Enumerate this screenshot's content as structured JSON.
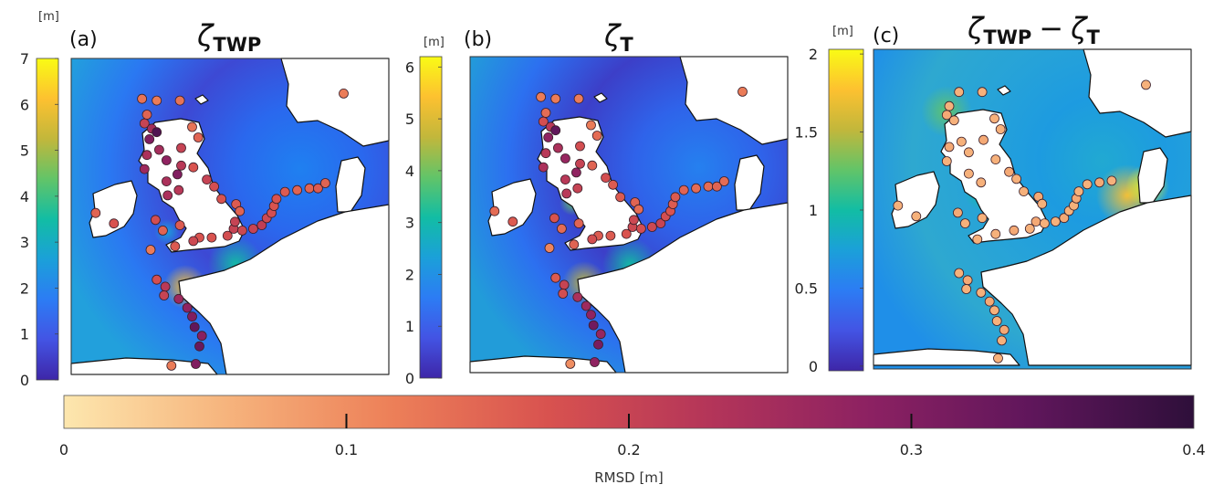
{
  "figure": {
    "panels": [
      {
        "id": "a",
        "label": "(a)",
        "title_base": "ζ",
        "title_sub": "TWP",
        "unit": "[m]",
        "cb_ticks": [
          "0",
          "1",
          "2",
          "3",
          "4",
          "5",
          "6",
          "7"
        ],
        "cb_range": [
          0,
          7
        ],
        "gauges": [
          {
            "lon": -6.2,
            "lat": 58.7,
            "rmsd": 0.13
          },
          {
            "lon": -5.0,
            "lat": 58.6,
            "rmsd": 0.12
          },
          {
            "lon": -3.1,
            "lat": 58.6,
            "rmsd": 0.13
          },
          {
            "lon": -5.8,
            "lat": 57.8,
            "rmsd": 0.15
          },
          {
            "lon": -6.0,
            "lat": 57.3,
            "rmsd": 0.2
          },
          {
            "lon": -5.4,
            "lat": 57.0,
            "rmsd": 0.25
          },
          {
            "lon": -5.0,
            "lat": 56.8,
            "rmsd": 0.36
          },
          {
            "lon": -5.6,
            "lat": 56.4,
            "rmsd": 0.3
          },
          {
            "lon": -2.1,
            "lat": 57.1,
            "rmsd": 0.13
          },
          {
            "lon": -1.6,
            "lat": 56.5,
            "rmsd": 0.15
          },
          {
            "lon": -3.0,
            "lat": 55.9,
            "rmsd": 0.2
          },
          {
            "lon": -4.8,
            "lat": 55.8,
            "rmsd": 0.25
          },
          {
            "lon": -5.8,
            "lat": 55.5,
            "rmsd": 0.24
          },
          {
            "lon": -4.2,
            "lat": 55.2,
            "rmsd": 0.28
          },
          {
            "lon": -3.0,
            "lat": 54.9,
            "rmsd": 0.22
          },
          {
            "lon": -6.0,
            "lat": 54.7,
            "rmsd": 0.26
          },
          {
            "lon": -3.3,
            "lat": 54.4,
            "rmsd": 0.3
          },
          {
            "lon": -4.2,
            "lat": 54.0,
            "rmsd": 0.24
          },
          {
            "lon": -2.0,
            "lat": 54.8,
            "rmsd": 0.17
          },
          {
            "lon": -0.9,
            "lat": 54.1,
            "rmsd": 0.2
          },
          {
            "lon": -3.2,
            "lat": 53.5,
            "rmsd": 0.22
          },
          {
            "lon": -4.1,
            "lat": 53.2,
            "rmsd": 0.24
          },
          {
            "lon": -0.3,
            "lat": 53.7,
            "rmsd": 0.18
          },
          {
            "lon": 0.3,
            "lat": 53.0,
            "rmsd": 0.17
          },
          {
            "lon": 1.5,
            "lat": 52.7,
            "rmsd": 0.16
          },
          {
            "lon": 1.8,
            "lat": 52.3,
            "rmsd": 0.15
          },
          {
            "lon": -10.0,
            "lat": 52.2,
            "rmsd": 0.15
          },
          {
            "lon": -8.5,
            "lat": 51.6,
            "rmsd": 0.17
          },
          {
            "lon": -5.1,
            "lat": 51.8,
            "rmsd": 0.18
          },
          {
            "lon": -3.1,
            "lat": 51.5,
            "rmsd": 0.16
          },
          {
            "lon": -1.5,
            "lat": 50.8,
            "rmsd": 0.17
          },
          {
            "lon": -4.5,
            "lat": 51.2,
            "rmsd": 0.15
          },
          {
            "lon": -5.5,
            "lat": 50.1,
            "rmsd": 0.12
          },
          {
            "lon": -3.5,
            "lat": 50.3,
            "rmsd": 0.16
          },
          {
            "lon": -2.0,
            "lat": 50.6,
            "rmsd": 0.19
          },
          {
            "lon": -0.5,
            "lat": 50.8,
            "rmsd": 0.17
          },
          {
            "lon": 0.8,
            "lat": 50.9,
            "rmsd": 0.18
          },
          {
            "lon": 1.3,
            "lat": 51.3,
            "rmsd": 0.2
          },
          {
            "lon": 1.4,
            "lat": 51.7,
            "rmsd": 0.2
          },
          {
            "lon": 2.0,
            "lat": 51.2,
            "rmsd": 0.19
          },
          {
            "lon": 2.9,
            "lat": 51.3,
            "rmsd": 0.2
          },
          {
            "lon": 3.6,
            "lat": 51.5,
            "rmsd": 0.21
          },
          {
            "lon": 4.0,
            "lat": 51.9,
            "rmsd": 0.19
          },
          {
            "lon": 4.4,
            "lat": 52.2,
            "rmsd": 0.18
          },
          {
            "lon": 4.6,
            "lat": 52.6,
            "rmsd": 0.17
          },
          {
            "lon": 4.8,
            "lat": 53.0,
            "rmsd": 0.17
          },
          {
            "lon": 5.5,
            "lat": 53.4,
            "rmsd": 0.16
          },
          {
            "lon": 6.5,
            "lat": 53.5,
            "rmsd": 0.15
          },
          {
            "lon": 7.5,
            "lat": 53.6,
            "rmsd": 0.15
          },
          {
            "lon": 8.2,
            "lat": 53.6,
            "rmsd": 0.16
          },
          {
            "lon": 8.8,
            "lat": 53.9,
            "rmsd": 0.15
          },
          {
            "lon": 10.3,
            "lat": 59.0,
            "rmsd": 0.12
          },
          {
            "lon": -5.0,
            "lat": 48.4,
            "rmsd": 0.18
          },
          {
            "lon": -4.3,
            "lat": 48.0,
            "rmsd": 0.22
          },
          {
            "lon": -4.4,
            "lat": 47.5,
            "rmsd": 0.2
          },
          {
            "lon": -3.2,
            "lat": 47.3,
            "rmsd": 0.26
          },
          {
            "lon": -2.5,
            "lat": 46.8,
            "rmsd": 0.28
          },
          {
            "lon": -2.1,
            "lat": 46.3,
            "rmsd": 0.3
          },
          {
            "lon": -1.9,
            "lat": 45.7,
            "rmsd": 0.34
          },
          {
            "lon": -1.3,
            "lat": 45.2,
            "rmsd": 0.29
          },
          {
            "lon": -1.5,
            "lat": 44.6,
            "rmsd": 0.33
          },
          {
            "lon": -1.8,
            "lat": 43.6,
            "rmsd": 0.3
          },
          {
            "lon": -3.8,
            "lat": 43.5,
            "rmsd": 0.12
          }
        ]
      },
      {
        "id": "b",
        "label": "(b)",
        "title_base": "ζ",
        "title_sub": "T",
        "unit": "[m]",
        "cb_ticks": [
          "0",
          "1",
          "2",
          "3",
          "4",
          "5",
          "6"
        ],
        "cb_range": [
          0,
          6.2
        ],
        "gauges": [
          {
            "lon": -6.2,
            "lat": 58.7,
            "rmsd": 0.12
          },
          {
            "lon": -5.0,
            "lat": 58.6,
            "rmsd": 0.12
          },
          {
            "lon": -3.1,
            "lat": 58.6,
            "rmsd": 0.12
          },
          {
            "lon": -5.8,
            "lat": 57.8,
            "rmsd": 0.14
          },
          {
            "lon": -6.0,
            "lat": 57.3,
            "rmsd": 0.18
          },
          {
            "lon": -5.4,
            "lat": 57.0,
            "rmsd": 0.22
          },
          {
            "lon": -5.0,
            "lat": 56.8,
            "rmsd": 0.34
          },
          {
            "lon": -5.6,
            "lat": 56.4,
            "rmsd": 0.28
          },
          {
            "lon": -2.1,
            "lat": 57.1,
            "rmsd": 0.12
          },
          {
            "lon": -1.6,
            "lat": 56.5,
            "rmsd": 0.14
          },
          {
            "lon": -3.0,
            "lat": 55.9,
            "rmsd": 0.18
          },
          {
            "lon": -4.8,
            "lat": 55.8,
            "rmsd": 0.24
          },
          {
            "lon": -5.8,
            "lat": 55.5,
            "rmsd": 0.22
          },
          {
            "lon": -4.2,
            "lat": 55.2,
            "rmsd": 0.27
          },
          {
            "lon": -3.0,
            "lat": 54.9,
            "rmsd": 0.2
          },
          {
            "lon": -6.0,
            "lat": 54.7,
            "rmsd": 0.24
          },
          {
            "lon": -3.3,
            "lat": 54.4,
            "rmsd": 0.28
          },
          {
            "lon": -4.2,
            "lat": 54.0,
            "rmsd": 0.22
          },
          {
            "lon": -2.0,
            "lat": 54.8,
            "rmsd": 0.15
          },
          {
            "lon": -0.9,
            "lat": 54.1,
            "rmsd": 0.18
          },
          {
            "lon": -3.2,
            "lat": 53.5,
            "rmsd": 0.2
          },
          {
            "lon": -4.1,
            "lat": 53.2,
            "rmsd": 0.22
          },
          {
            "lon": -0.3,
            "lat": 53.7,
            "rmsd": 0.16
          },
          {
            "lon": 0.3,
            "lat": 53.0,
            "rmsd": 0.16
          },
          {
            "lon": 1.5,
            "lat": 52.7,
            "rmsd": 0.15
          },
          {
            "lon": 1.8,
            "lat": 52.3,
            "rmsd": 0.14
          },
          {
            "lon": -10.0,
            "lat": 52.2,
            "rmsd": 0.14
          },
          {
            "lon": -8.5,
            "lat": 51.6,
            "rmsd": 0.16
          },
          {
            "lon": -5.1,
            "lat": 51.8,
            "rmsd": 0.17
          },
          {
            "lon": -3.1,
            "lat": 51.5,
            "rmsd": 0.15
          },
          {
            "lon": -1.5,
            "lat": 50.8,
            "rmsd": 0.16
          },
          {
            "lon": -4.5,
            "lat": 51.2,
            "rmsd": 0.14
          },
          {
            "lon": -5.5,
            "lat": 50.1,
            "rmsd": 0.11
          },
          {
            "lon": -3.5,
            "lat": 50.3,
            "rmsd": 0.15
          },
          {
            "lon": -2.0,
            "lat": 50.6,
            "rmsd": 0.18
          },
          {
            "lon": -0.5,
            "lat": 50.8,
            "rmsd": 0.16
          },
          {
            "lon": 0.8,
            "lat": 50.9,
            "rmsd": 0.17
          },
          {
            "lon": 1.3,
            "lat": 51.3,
            "rmsd": 0.19
          },
          {
            "lon": 1.4,
            "lat": 51.7,
            "rmsd": 0.19
          },
          {
            "lon": 2.0,
            "lat": 51.2,
            "rmsd": 0.18
          },
          {
            "lon": 2.9,
            "lat": 51.3,
            "rmsd": 0.19
          },
          {
            "lon": 3.6,
            "lat": 51.5,
            "rmsd": 0.2
          },
          {
            "lon": 4.0,
            "lat": 51.9,
            "rmsd": 0.18
          },
          {
            "lon": 4.4,
            "lat": 52.2,
            "rmsd": 0.17
          },
          {
            "lon": 4.6,
            "lat": 52.6,
            "rmsd": 0.16
          },
          {
            "lon": 4.8,
            "lat": 53.0,
            "rmsd": 0.16
          },
          {
            "lon": 5.5,
            "lat": 53.4,
            "rmsd": 0.15
          },
          {
            "lon": 6.5,
            "lat": 53.5,
            "rmsd": 0.14
          },
          {
            "lon": 7.5,
            "lat": 53.6,
            "rmsd": 0.14
          },
          {
            "lon": 8.2,
            "lat": 53.6,
            "rmsd": 0.15
          },
          {
            "lon": 8.8,
            "lat": 53.9,
            "rmsd": 0.14
          },
          {
            "lon": 10.3,
            "lat": 59.0,
            "rmsd": 0.12
          },
          {
            "lon": -5.0,
            "lat": 48.4,
            "rmsd": 0.16
          },
          {
            "lon": -4.3,
            "lat": 48.0,
            "rmsd": 0.2
          },
          {
            "lon": -4.4,
            "lat": 47.5,
            "rmsd": 0.18
          },
          {
            "lon": -3.2,
            "lat": 47.3,
            "rmsd": 0.24
          },
          {
            "lon": -2.5,
            "lat": 46.8,
            "rmsd": 0.26
          },
          {
            "lon": -2.1,
            "lat": 46.3,
            "rmsd": 0.28
          },
          {
            "lon": -1.9,
            "lat": 45.7,
            "rmsd": 0.32
          },
          {
            "lon": -1.3,
            "lat": 45.2,
            "rmsd": 0.27
          },
          {
            "lon": -1.5,
            "lat": 44.6,
            "rmsd": 0.31
          },
          {
            "lon": -1.8,
            "lat": 43.6,
            "rmsd": 0.28
          },
          {
            "lon": -3.8,
            "lat": 43.5,
            "rmsd": 0.1
          }
        ]
      },
      {
        "id": "c",
        "label": "(c)",
        "title_base": "ζ",
        "title_sub": "TWP",
        "title_minus": "−",
        "title_base2": "ζ",
        "title_sub2": "T",
        "unit": "[m]",
        "cb_ticks": [
          "0",
          "0.5",
          "1",
          "1.5",
          "2"
        ],
        "cb_range": [
          -0.03,
          2.03
        ],
        "gauges": [
          {
            "lon": -5.0,
            "lat": 58.6,
            "rmsd": 0.06
          },
          {
            "lon": -3.1,
            "lat": 58.6,
            "rmsd": 0.06
          },
          {
            "lon": -5.8,
            "lat": 57.8,
            "rmsd": 0.06
          },
          {
            "lon": -6.0,
            "lat": 57.3,
            "rmsd": 0.07
          },
          {
            "lon": -5.4,
            "lat": 57.0,
            "rmsd": 0.06
          },
          {
            "lon": -2.1,
            "lat": 57.1,
            "rmsd": 0.06
          },
          {
            "lon": -1.6,
            "lat": 56.5,
            "rmsd": 0.06
          },
          {
            "lon": -3.0,
            "lat": 55.9,
            "rmsd": 0.07
          },
          {
            "lon": -4.8,
            "lat": 55.8,
            "rmsd": 0.06
          },
          {
            "lon": -5.8,
            "lat": 55.5,
            "rmsd": 0.07
          },
          {
            "lon": -4.2,
            "lat": 55.2,
            "rmsd": 0.06
          },
          {
            "lon": -6.0,
            "lat": 54.7,
            "rmsd": 0.06
          },
          {
            "lon": -2.0,
            "lat": 54.8,
            "rmsd": 0.06
          },
          {
            "lon": -0.9,
            "lat": 54.1,
            "rmsd": 0.07
          },
          {
            "lon": -4.2,
            "lat": 54.0,
            "rmsd": 0.06
          },
          {
            "lon": -3.2,
            "lat": 53.5,
            "rmsd": 0.06
          },
          {
            "lon": -0.3,
            "lat": 53.7,
            "rmsd": 0.06
          },
          {
            "lon": 0.3,
            "lat": 53.0,
            "rmsd": 0.06
          },
          {
            "lon": 1.5,
            "lat": 52.7,
            "rmsd": 0.07
          },
          {
            "lon": 1.8,
            "lat": 52.3,
            "rmsd": 0.06
          },
          {
            "lon": -10.0,
            "lat": 52.2,
            "rmsd": 0.06
          },
          {
            "lon": -8.5,
            "lat": 51.6,
            "rmsd": 0.06
          },
          {
            "lon": -5.1,
            "lat": 51.8,
            "rmsd": 0.07
          },
          {
            "lon": -3.1,
            "lat": 51.5,
            "rmsd": 0.06
          },
          {
            "lon": -4.5,
            "lat": 51.2,
            "rmsd": 0.06
          },
          {
            "lon": -3.5,
            "lat": 50.3,
            "rmsd": 0.06
          },
          {
            "lon": -2.0,
            "lat": 50.6,
            "rmsd": 0.06
          },
          {
            "lon": -0.5,
            "lat": 50.8,
            "rmsd": 0.07
          },
          {
            "lon": 0.8,
            "lat": 50.9,
            "rmsd": 0.06
          },
          {
            "lon": 1.3,
            "lat": 51.3,
            "rmsd": 0.07
          },
          {
            "lon": 2.0,
            "lat": 51.2,
            "rmsd": 0.06
          },
          {
            "lon": 2.9,
            "lat": 51.3,
            "rmsd": 0.06
          },
          {
            "lon": 3.6,
            "lat": 51.5,
            "rmsd": 0.07
          },
          {
            "lon": 4.0,
            "lat": 51.9,
            "rmsd": 0.06
          },
          {
            "lon": 4.4,
            "lat": 52.2,
            "rmsd": 0.06
          },
          {
            "lon": 4.6,
            "lat": 52.6,
            "rmsd": 0.07
          },
          {
            "lon": 4.8,
            "lat": 53.0,
            "rmsd": 0.06
          },
          {
            "lon": 5.5,
            "lat": 53.4,
            "rmsd": 0.06
          },
          {
            "lon": 6.5,
            "lat": 53.5,
            "rmsd": 0.07
          },
          {
            "lon": 7.5,
            "lat": 53.6,
            "rmsd": 0.06
          },
          {
            "lon": 10.3,
            "lat": 59.0,
            "rmsd": 0.06
          },
          {
            "lon": -5.0,
            "lat": 48.4,
            "rmsd": 0.06
          },
          {
            "lon": -4.3,
            "lat": 48.0,
            "rmsd": 0.07
          },
          {
            "lon": -4.4,
            "lat": 47.5,
            "rmsd": 0.06
          },
          {
            "lon": -3.2,
            "lat": 47.3,
            "rmsd": 0.06
          },
          {
            "lon": -2.5,
            "lat": 46.8,
            "rmsd": 0.07
          },
          {
            "lon": -2.1,
            "lat": 46.3,
            "rmsd": 0.06
          },
          {
            "lon": -1.9,
            "lat": 45.7,
            "rmsd": 0.06
          },
          {
            "lon": -1.3,
            "lat": 45.2,
            "rmsd": 0.07
          },
          {
            "lon": -1.5,
            "lat": 44.6,
            "rmsd": 0.06
          },
          {
            "lon": -1.8,
            "lat": 43.6,
            "rmsd": 0.06
          }
        ]
      }
    ],
    "rmsd_colorbar": {
      "label": "RMSD [m]",
      "ticks": [
        "0",
        "0.1",
        "0.2",
        "0.3",
        "0.4"
      ],
      "range": [
        0,
        0.4
      ]
    },
    "colors": {
      "land": "#ffffff",
      "coast": "#111111",
      "marker_edge": "#3a1f2a",
      "parula_stops": [
        "#3e26a8",
        "#4354e4",
        "#2c7cf4",
        "#1ba0d9",
        "#12bda4",
        "#62c468",
        "#c2b73b",
        "#fdc130",
        "#f9fb15"
      ],
      "magma_r_stops": [
        "#fde7ae",
        "#f6b47d",
        "#ed8159",
        "#d8524f",
        "#b43559",
        "#8c2162",
        "#5f165b",
        "#2e0f3a"
      ]
    }
  }
}
